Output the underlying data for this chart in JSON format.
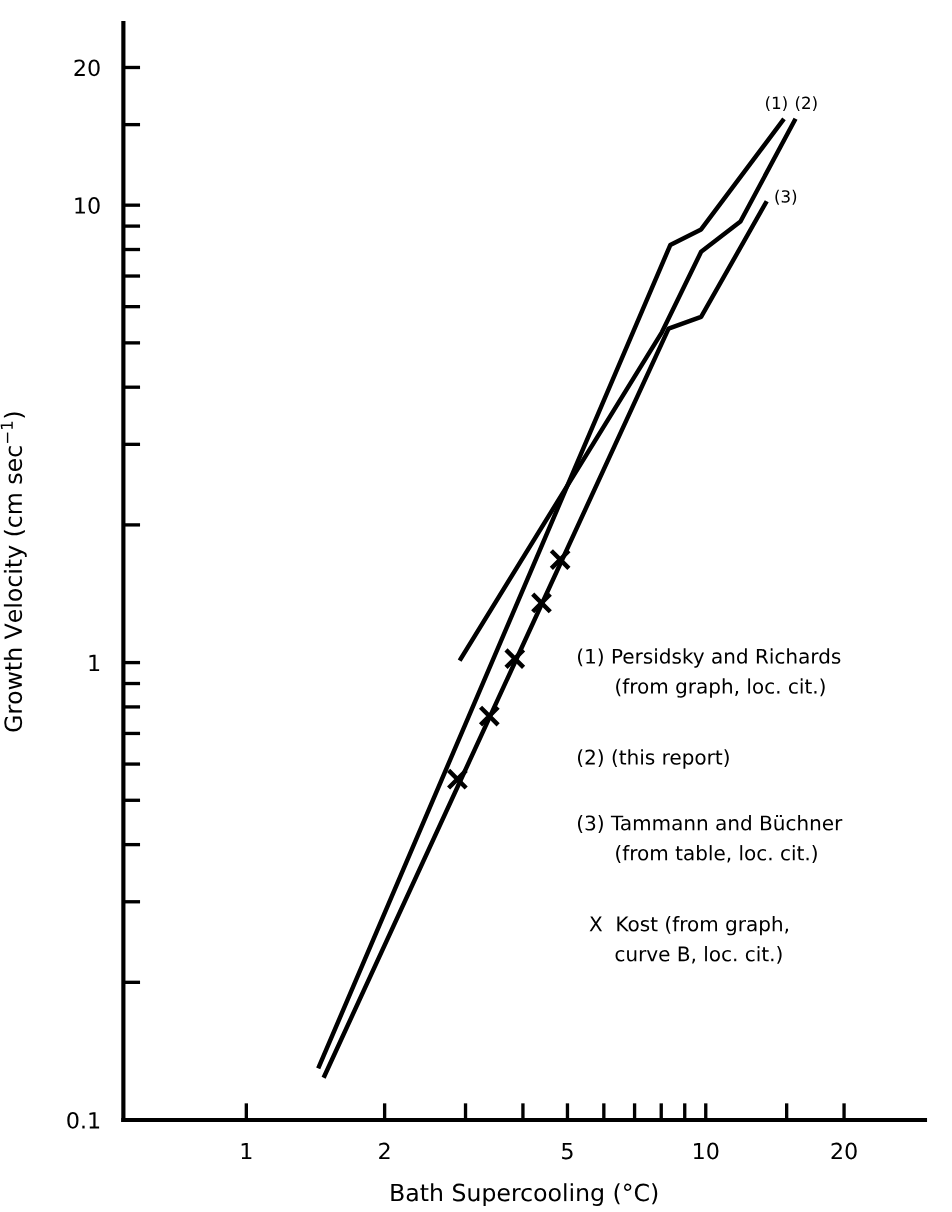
{
  "chart_data": {
    "type": "line",
    "xlabel": "Bath Supercooling (°C)",
    "ylabel": "Growth Velocity (cm sec$^{−1}$)",
    "log": "xy",
    "xlim": [
      0.54,
      30
    ],
    "ylim": [
      0.1,
      25
    ],
    "xticks": [
      1,
      2,
      {
        "value": 3,
        "label": null
      },
      {
        "value": 4,
        "label": null
      },
      5,
      {
        "value": 6,
        "label": null
      },
      {
        "value": 7,
        "label": null
      },
      {
        "value": 8,
        "label": null
      },
      {
        "value": 9,
        "label": null
      },
      10,
      {
        "value": 15,
        "label": null
      },
      20
    ],
    "yticks": [
      0.1,
      {
        "value": 0.2,
        "label": null
      },
      {
        "value": 0.3,
        "label": null
      },
      {
        "value": 0.4,
        "label": null
      },
      {
        "value": 0.5,
        "label": null
      },
      {
        "value": 0.6,
        "label": null
      },
      {
        "value": 0.7,
        "label": null
      },
      {
        "value": 0.8,
        "label": null
      },
      {
        "value": 0.9,
        "label": null
      },
      1,
      {
        "value": 2,
        "label": null
      },
      {
        "value": 3,
        "label": null
      },
      {
        "value": 4,
        "label": null
      },
      {
        "value": 5,
        "label": null
      },
      {
        "value": 6,
        "label": null
      },
      {
        "value": 7,
        "label": null
      },
      {
        "value": 8,
        "label": null
      },
      {
        "value": 9,
        "label": null
      },
      10,
      {
        "value": 15,
        "label": null
      },
      20
    ],
    "grid": false,
    "legend": false,
    "marker": "none",
    "line_style": "solid",
    "series": [
      {
        "name": "(1)",
        "color": "#000000",
        "x": [
          1.44,
          8.37,
          9.77,
          14.7
        ],
        "values": [
          0.131,
          8.18,
          8.85,
          15.3
        ]
      },
      {
        "name": "(2)",
        "color": "#000000",
        "x": [
          2.93,
          8.03,
          9.77,
          11.9,
          15.6
        ],
        "values": [
          1.02,
          5.28,
          7.91,
          9.21,
          15.3
        ]
      },
      {
        "name": "(3)",
        "color": "#000000",
        "x": [
          1.48,
          8.3,
          9.77,
          13.5
        ],
        "values": [
          0.125,
          5.37,
          5.7,
          10.1
        ]
      },
      {
        "type": "scatter",
        "marker": "cross",
        "color": "#000000",
        "x": [
          2.88,
          3.38,
          3.84,
          4.39,
          4.82
        ],
        "values": [
          0.556,
          0.764,
          1.02,
          1.35,
          1.68
        ]
      }
    ],
    "annotations": [
      "(1) Persidsky and Richards\n      (from graph, loc. cit.)",
      "(2) (this report)",
      "(3) Tammann and Büchner\n      (from table, loc. cit.)",
      "  X  Kost (from graph,\n      curve B, loc. cit.)"
    ]
  }
}
